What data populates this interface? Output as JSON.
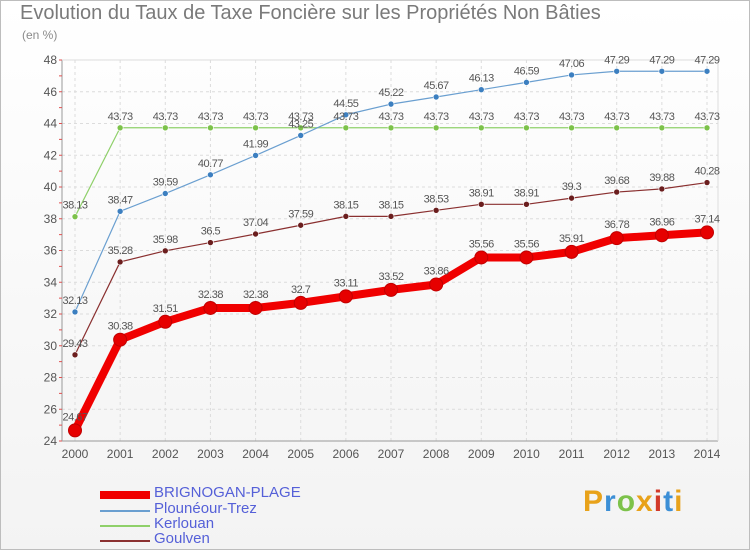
{
  "header": {
    "title": "Evolution du Taux de Taxe Foncière sur les Propriétés Non Bâties",
    "subtitle": "(en %)"
  },
  "brand": {
    "text": "Proxiti",
    "colors": [
      "#e8a21a",
      "#3c8fd6",
      "#7cc24a",
      "#e8a21a",
      "#d23a2a",
      "#3c8fd6",
      "#e8a21a"
    ]
  },
  "chart_data": {
    "type": "line",
    "x": [
      "2000",
      "2001",
      "2002",
      "2003",
      "2004",
      "2005",
      "2006",
      "2007",
      "2008",
      "2009",
      "2010",
      "2011",
      "2012",
      "2013",
      "2014"
    ],
    "ylim": [
      24,
      48
    ],
    "yticks": [
      24,
      26,
      28,
      30,
      32,
      34,
      36,
      38,
      40,
      42,
      44,
      46,
      48
    ],
    "grid": true,
    "legend_position": "bottom-left",
    "series": [
      {
        "name": "BRIGNOGAN-PLAGE",
        "color": "#f00000",
        "marker_color": "#e60000",
        "values": [
          24.67,
          30.38,
          31.51,
          32.38,
          32.38,
          32.7,
          33.11,
          33.52,
          33.86,
          35.56,
          35.56,
          35.91,
          36.78,
          36.96,
          37.14
        ],
        "labels": [
          "24.67",
          "30.38",
          "31.51",
          "32.38",
          "32.38",
          "32.7",
          "33.11",
          "33.52",
          "33.86",
          "35.56",
          "35.56",
          "35.91",
          "36.78",
          "36.96",
          "37.14"
        ]
      },
      {
        "name": "Plounéour-Trez",
        "color": "#6a9fd0",
        "marker_color": "#3c7fc0",
        "values": [
          32.13,
          38.47,
          39.59,
          40.77,
          41.99,
          43.25,
          44.55,
          45.22,
          45.67,
          46.13,
          46.59,
          47.06,
          47.29,
          47.29,
          47.29
        ],
        "labels": [
          "32.13",
          "38.47",
          "39.59",
          "40.77",
          "41.99",
          "43.25",
          "44.55",
          "45.22",
          "45.67",
          "46.13",
          "46.59",
          "47.06",
          "47.29",
          "47.29",
          "47.29"
        ]
      },
      {
        "name": "Kerlouan",
        "color": "#8fd06a",
        "marker_color": "#7cc24a",
        "values": [
          38.13,
          43.73,
          43.73,
          43.73,
          43.73,
          43.73,
          43.73,
          43.73,
          43.73,
          43.73,
          43.73,
          43.73,
          43.73,
          43.73,
          43.73
        ],
        "labels": [
          "38.13",
          "43.73",
          "43.73",
          "43.73",
          "43.73",
          "43.73",
          "43.73",
          "43.73",
          "43.73",
          "43.73",
          "43.73",
          "43.73",
          "43.73",
          "43.73",
          "43.73"
        ]
      },
      {
        "name": "Goulven",
        "color": "#8a3030",
        "marker_color": "#6b1e1e",
        "values": [
          29.43,
          35.28,
          35.98,
          36.5,
          37.04,
          37.59,
          38.15,
          38.15,
          38.53,
          38.91,
          38.91,
          39.3,
          39.68,
          39.88,
          40.28
        ],
        "labels": [
          "29.43",
          "35.28",
          "35.98",
          "36.5",
          "37.04",
          "37.59",
          "38.15",
          "38.15",
          "38.53",
          "38.91",
          "38.91",
          "39.3",
          "39.68",
          "39.88",
          "40.28"
        ]
      }
    ]
  }
}
